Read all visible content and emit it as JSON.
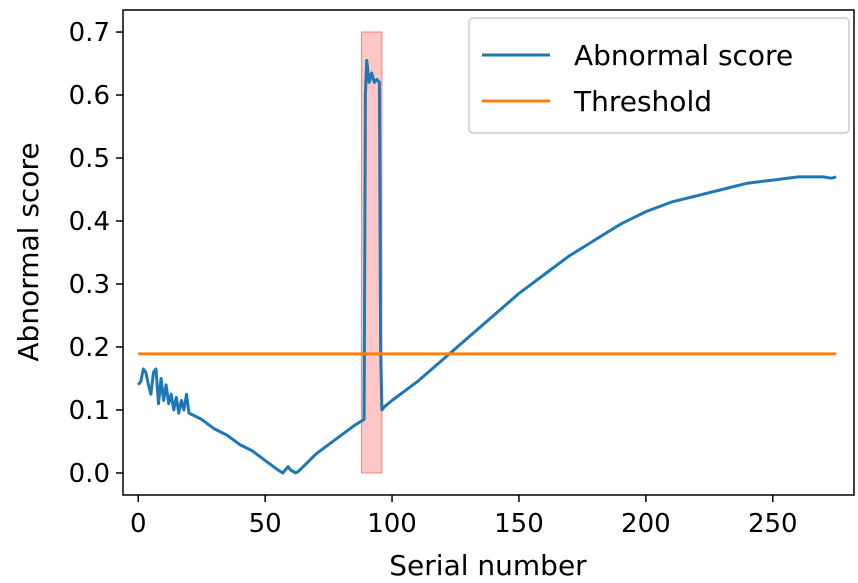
{
  "chart_data": {
    "type": "line",
    "xlabel": "Serial number",
    "ylabel": "Abnormal score",
    "xlim": [
      -6,
      282
    ],
    "ylim": [
      -0.035,
      0.735
    ],
    "x_ticks": [
      0,
      50,
      100,
      150,
      200,
      250
    ],
    "x_tick_labels": [
      "0",
      "50",
      "100",
      "150",
      "200",
      "250"
    ],
    "y_ticks": [
      0.0,
      0.1,
      0.2,
      0.3,
      0.4,
      0.5,
      0.6,
      0.7
    ],
    "y_tick_labels": [
      "0.0",
      "0.1",
      "0.2",
      "0.3",
      "0.4",
      "0.5",
      "0.6",
      "0.7"
    ],
    "grid": false,
    "legend_position": "top-right",
    "series": [
      {
        "name": "Abnormal score",
        "color": "#1f77b4",
        "x": [
          0,
          1,
          2,
          3,
          4,
          5,
          6,
          7,
          8,
          9,
          10,
          11,
          12,
          13,
          14,
          15,
          16,
          17,
          18,
          19,
          20,
          25,
          30,
          35,
          40,
          45,
          50,
          55,
          57,
          58,
          59,
          60,
          62,
          63,
          65,
          70,
          75,
          80,
          85,
          89,
          89.5,
          90,
          91,
          92,
          93,
          94,
          95,
          95.5,
          96,
          97,
          100,
          110,
          120,
          130,
          140,
          150,
          160,
          170,
          180,
          190,
          200,
          210,
          220,
          230,
          240,
          250,
          260,
          270,
          273,
          275
        ],
        "y": [
          0.14,
          0.145,
          0.165,
          0.16,
          0.14,
          0.125,
          0.16,
          0.165,
          0.11,
          0.15,
          0.115,
          0.14,
          0.11,
          0.125,
          0.1,
          0.12,
          0.095,
          0.115,
          0.1,
          0.125,
          0.095,
          0.085,
          0.07,
          0.06,
          0.045,
          0.035,
          0.02,
          0.005,
          0.0,
          0.005,
          0.01,
          0.005,
          0.0,
          0.002,
          0.01,
          0.03,
          0.045,
          0.06,
          0.075,
          0.085,
          0.6,
          0.655,
          0.62,
          0.635,
          0.62,
          0.625,
          0.62,
          0.2,
          0.1,
          0.105,
          0.115,
          0.145,
          0.18,
          0.215,
          0.25,
          0.285,
          0.315,
          0.345,
          0.37,
          0.395,
          0.415,
          0.43,
          0.44,
          0.45,
          0.46,
          0.465,
          0.47,
          0.47,
          0.468,
          0.47
        ]
      },
      {
        "name": "Threshold",
        "color": "#ff7f0e",
        "x": [
          0,
          275
        ],
        "y": [
          0.189,
          0.189
        ]
      }
    ],
    "highlight_region": {
      "x_range": [
        88,
        96
      ],
      "y_range": [
        0.0,
        0.7
      ],
      "color": "#ffb3b3"
    }
  }
}
